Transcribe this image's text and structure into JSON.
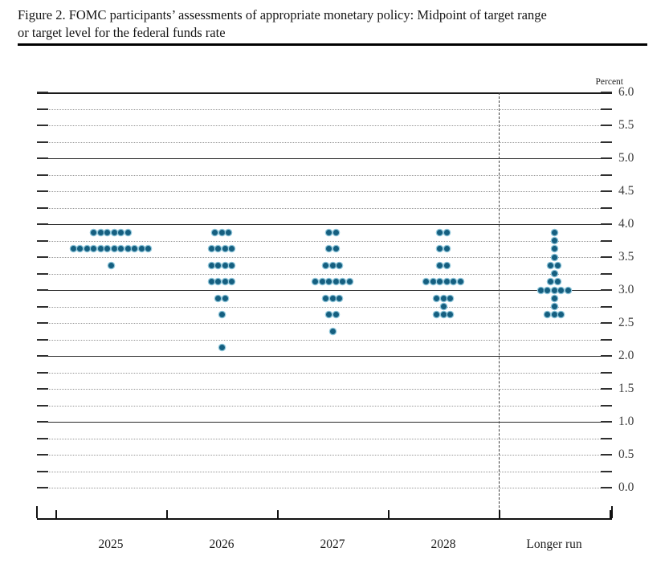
{
  "figure": {
    "title_line1": "Figure 2. FOMC participants’ assessments of appropriate monetary policy: Midpoint of target range",
    "title_line2": "or target level for the federal funds rate"
  },
  "chart_data": {
    "type": "scatter",
    "subtype": "fomc-dot-plot",
    "unit_label": "Percent",
    "ylim": [
      0.0,
      6.0
    ],
    "gridline_step": 0.25,
    "solid_gridlines": [
      1.0,
      2.0,
      3.0,
      4.0,
      5.0,
      6.0
    ],
    "y_tick_labels": [
      "6.0",
      "5.5",
      "5.0",
      "4.5",
      "4.0",
      "3.5",
      "3.0",
      "2.5",
      "2.0",
      "1.5",
      "1.0",
      "0.5",
      "0.0"
    ],
    "categories": [
      "2025",
      "2026",
      "2027",
      "2028",
      "Longer run"
    ],
    "participants_per_column": 19,
    "series": [
      {
        "category": "2025",
        "dots": [
          {
            "rate": 3.875,
            "count": 6
          },
          {
            "rate": 3.625,
            "count": 12
          },
          {
            "rate": 3.375,
            "count": 1
          }
        ]
      },
      {
        "category": "2026",
        "dots": [
          {
            "rate": 3.875,
            "count": 3
          },
          {
            "rate": 3.625,
            "count": 4
          },
          {
            "rate": 3.375,
            "count": 4
          },
          {
            "rate": 3.125,
            "count": 4
          },
          {
            "rate": 2.875,
            "count": 2
          },
          {
            "rate": 2.625,
            "count": 1
          },
          {
            "rate": 2.125,
            "count": 1
          }
        ]
      },
      {
        "category": "2027",
        "dots": [
          {
            "rate": 3.875,
            "count": 2
          },
          {
            "rate": 3.625,
            "count": 2
          },
          {
            "rate": 3.375,
            "count": 3
          },
          {
            "rate": 3.125,
            "count": 6
          },
          {
            "rate": 2.875,
            "count": 3
          },
          {
            "rate": 2.625,
            "count": 2
          },
          {
            "rate": 2.375,
            "count": 1
          }
        ]
      },
      {
        "category": "2028",
        "dots": [
          {
            "rate": 3.875,
            "count": 2
          },
          {
            "rate": 3.625,
            "count": 2
          },
          {
            "rate": 3.375,
            "count": 2
          },
          {
            "rate": 3.125,
            "count": 6
          },
          {
            "rate": 2.875,
            "count": 3
          },
          {
            "rate": 2.75,
            "count": 1
          },
          {
            "rate": 2.625,
            "count": 3
          }
        ]
      },
      {
        "category": "Longer run",
        "dots": [
          {
            "rate": 3.875,
            "count": 1
          },
          {
            "rate": 3.75,
            "count": 1
          },
          {
            "rate": 3.625,
            "count": 1
          },
          {
            "rate": 3.5,
            "count": 1
          },
          {
            "rate": 3.375,
            "count": 2
          },
          {
            "rate": 3.25,
            "count": 1
          },
          {
            "rate": 3.125,
            "count": 2
          },
          {
            "rate": 3.0,
            "count": 5
          },
          {
            "rate": 2.875,
            "count": 1
          },
          {
            "rate": 2.75,
            "count": 1
          },
          {
            "rate": 2.625,
            "count": 3
          }
        ]
      }
    ],
    "colors": {
      "dot": "#155f80",
      "dot_halo": "#8fc6da"
    }
  }
}
